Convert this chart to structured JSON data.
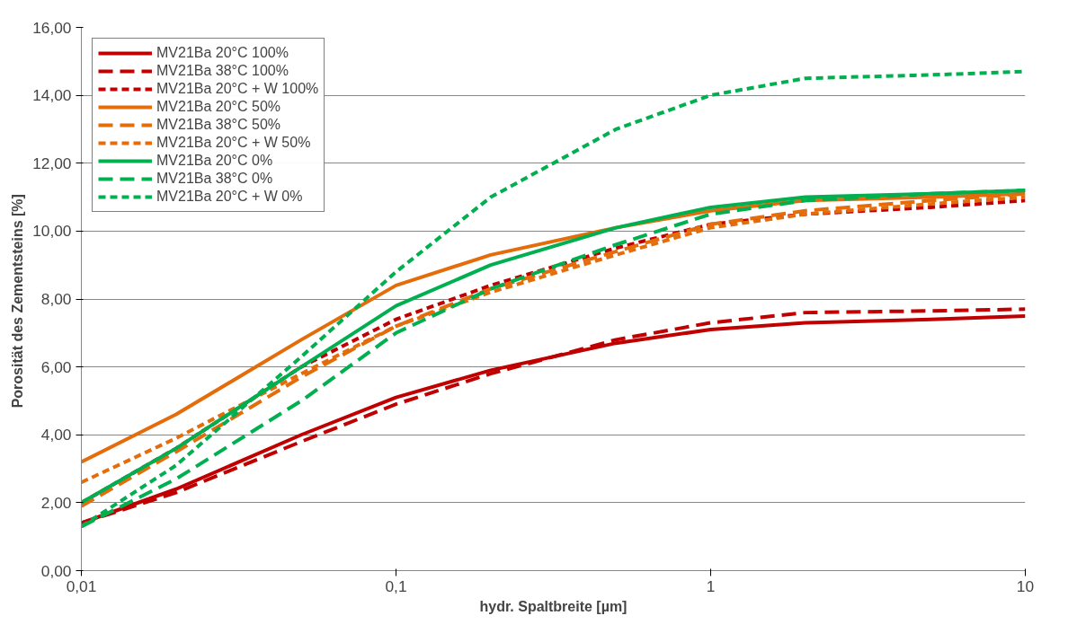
{
  "chart_data": {
    "type": "line",
    "xlabel": "hydr. Spaltbreite [µm]",
    "ylabel": "Porosität  des Zementsteins [%]",
    "log": "x",
    "grid": "y",
    "legend": "top left",
    "xlim": [
      0.01,
      10
    ],
    "xticks": [
      {
        "value": 0.01,
        "label": "0,01"
      },
      {
        "value": 0.1,
        "label": "0,1"
      },
      1,
      10
    ],
    "ylim": [
      0,
      16
    ],
    "yticks": [
      {
        "value": 0,
        "label": "0,00"
      },
      {
        "value": 2,
        "label": "2,00"
      },
      {
        "value": 4,
        "label": "4,00"
      },
      {
        "value": 6,
        "label": "6,00"
      },
      {
        "value": 8,
        "label": "8,00"
      },
      {
        "value": 10,
        "label": "10,00"
      },
      {
        "value": 12,
        "label": "12,00"
      },
      {
        "value": 14,
        "label": "14,00"
      },
      {
        "value": 16,
        "label": "16,00"
      }
    ],
    "x": [
      0.01,
      0.02,
      0.05,
      0.1,
      0.2,
      0.5,
      1,
      2,
      5,
      10
    ],
    "series": [
      {
        "name": "MV21Ba 20°C 100%",
        "color": "#c00000",
        "line_style": "solid",
        "values": [
          1.4,
          2.4,
          4.0,
          5.1,
          5.9,
          6.7,
          7.1,
          7.3,
          7.4,
          7.5
        ]
      },
      {
        "name": "MV21Ba 38°C 100%",
        "color": "#c00000",
        "line_style": "dashed",
        "values": [
          1.4,
          2.3,
          3.8,
          4.9,
          5.8,
          6.8,
          7.3,
          7.6,
          7.65,
          7.7
        ]
      },
      {
        "name": "MV21Ba 20°C + W 100%",
        "color": "#c00000",
        "line_style": "dotted",
        "values": [
          2.0,
          3.6,
          6.0,
          7.4,
          8.4,
          9.5,
          10.2,
          10.5,
          10.7,
          10.9
        ]
      },
      {
        "name": "MV21Ba 20°C 50%",
        "color": "#e46c0a",
        "line_style": "solid",
        "values": [
          3.2,
          4.6,
          6.8,
          8.4,
          9.3,
          10.1,
          10.6,
          10.9,
          11.0,
          11.1
        ]
      },
      {
        "name": "MV21Ba 38°C 50%",
        "color": "#e46c0a",
        "line_style": "dashed",
        "values": [
          1.9,
          3.5,
          5.7,
          7.2,
          8.3,
          9.4,
          10.2,
          10.6,
          10.9,
          11.1
        ]
      },
      {
        "name": "MV21Ba 20°C + W 50%",
        "color": "#e46c0a",
        "line_style": "dotted",
        "values": [
          2.6,
          3.9,
          5.8,
          7.2,
          8.2,
          9.3,
          10.1,
          10.5,
          10.8,
          11.0
        ]
      },
      {
        "name": "MV21Ba 20°C 0%",
        "color": "#00b050",
        "line_style": "solid",
        "values": [
          2.0,
          3.6,
          6.0,
          7.8,
          9.0,
          10.1,
          10.7,
          11.0,
          11.1,
          11.2
        ]
      },
      {
        "name": "MV21Ba 38°C 0%",
        "color": "#00b050",
        "line_style": "dashed",
        "values": [
          1.3,
          2.7,
          5.0,
          7.0,
          8.3,
          9.6,
          10.5,
          10.9,
          11.1,
          11.2
        ]
      },
      {
        "name": "MV21Ba 20°C + W 0%",
        "color": "#00b050",
        "line_style": "dotted",
        "values": [
          1.3,
          3.1,
          6.3,
          8.8,
          11.0,
          13.0,
          14.0,
          14.5,
          14.6,
          14.7
        ]
      }
    ]
  }
}
